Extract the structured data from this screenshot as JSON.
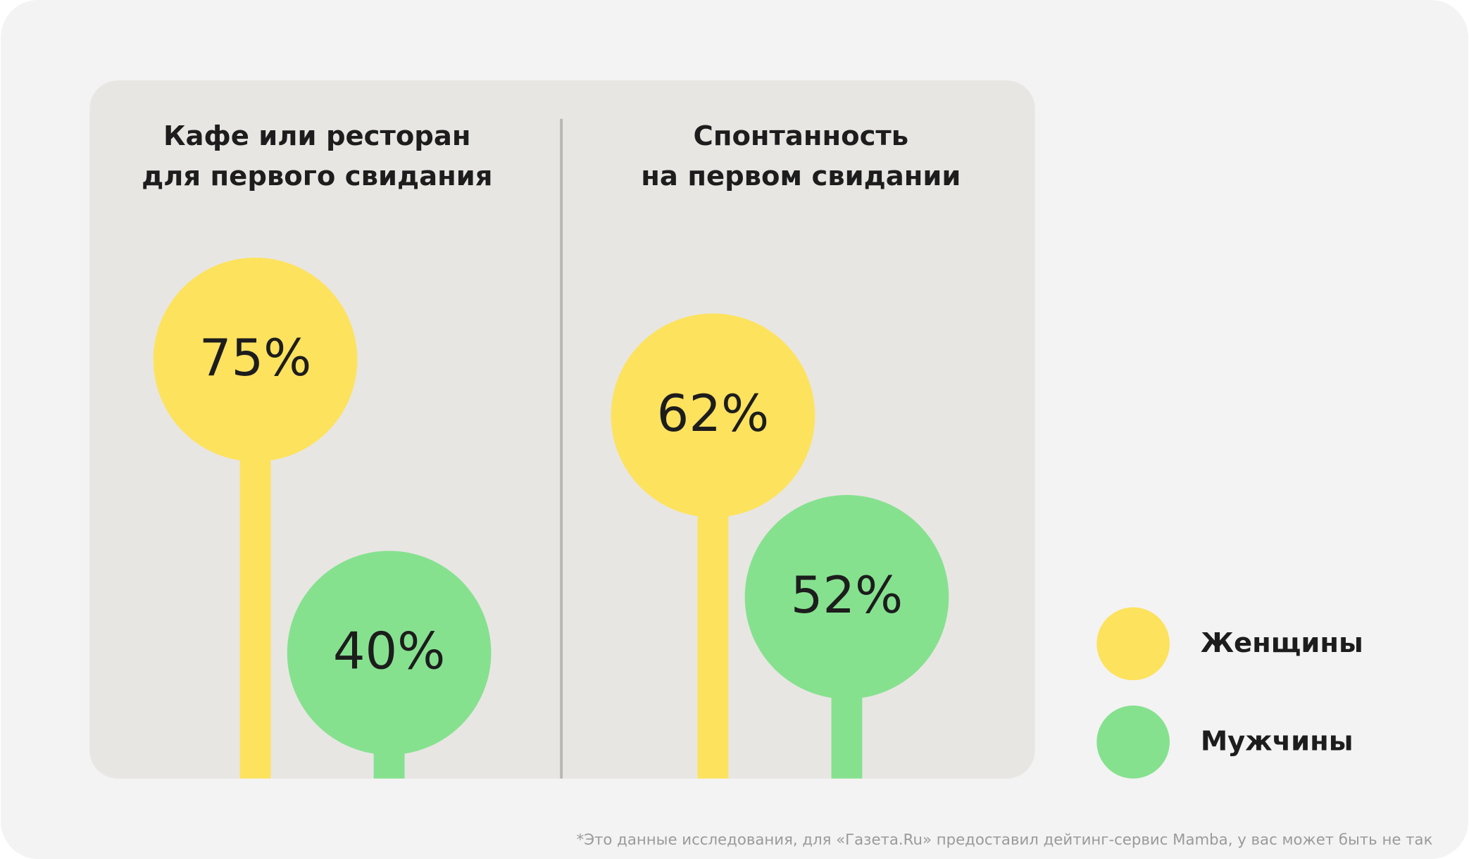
{
  "chart_data": [
    {
      "type": "lollipop",
      "title": [
        "Кафе или ресторан",
        "для первого свидания"
      ],
      "ylim": [
        25,
        90
      ],
      "series": [
        {
          "name": "Женщины",
          "color": "#fde25e",
          "values": [
            75
          ],
          "value_labels": [
            "75%"
          ]
        },
        {
          "name": "Мужчины",
          "color": "#86e18f",
          "values": [
            40
          ],
          "value_labels": [
            "40%"
          ]
        }
      ]
    },
    {
      "type": "lollipop",
      "title": [
        "Спонтанность",
        "на первом свидании"
      ],
      "ylim": [
        42,
        72
      ],
      "series": [
        {
          "name": "Женщины",
          "color": "#fde25e",
          "values": [
            62
          ],
          "value_labels": [
            "62%"
          ]
        },
        {
          "name": "Мужчины",
          "color": "#86e18f",
          "values": [
            52
          ],
          "value_labels": [
            "52%"
          ]
        }
      ]
    }
  ],
  "footnote": "*Это данные исследования, для «Газета.Ru» предоставил дейтинг-сервис Mamba, у вас может быть не так"
}
